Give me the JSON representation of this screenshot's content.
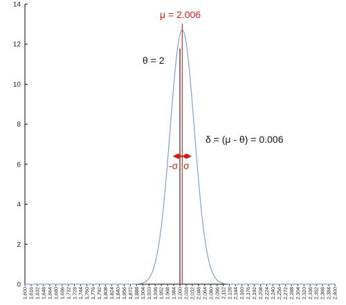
{
  "chart_data": {
    "type": "line",
    "title": "",
    "xlabel": "",
    "ylabel": "",
    "xlim": [
      1.6,
      2.4
    ],
    "ylim": [
      0,
      14
    ],
    "x_step": 0.016,
    "y_ticks": [
      "0",
      "2",
      "4",
      "6",
      "8",
      "10",
      "12",
      "14"
    ],
    "x_tick_labels": [
      "1,600",
      "1,616",
      "1,632",
      "1,648",
      "1,664",
      "1,680",
      "1,696",
      "1,712",
      "1,728",
      "1,744",
      "1,760",
      "1,776",
      "1,792",
      "1,808",
      "1,824",
      "1,840",
      "1,856",
      "1,872",
      "1,888",
      "1,904",
      "1,920",
      "1,936",
      "1,952",
      "1,968",
      "1,984",
      "2,000",
      "2,016",
      "2,032",
      "2,048",
      "2,064",
      "2,080",
      "2,096",
      "2,112",
      "2,128",
      "2,144",
      "2,160",
      "2,176",
      "2,192",
      "2,208",
      "2,224",
      "2,240",
      "2,256",
      "2,272",
      "2,288",
      "2,304",
      "2,320",
      "2,336",
      "2,352",
      "2,368",
      "2,384",
      "2,400"
    ],
    "curve": {
      "distribution": "normal",
      "mean": 2.006,
      "sigma": 0.0314,
      "color": "#7f9fcf"
    },
    "theta": {
      "value": 2,
      "label": "θ = 2",
      "color": "#111111"
    },
    "mu": {
      "value": 2.006,
      "label": "μ = 2.006",
      "color": "#d21a1a"
    },
    "delta": {
      "label": "δ = (μ - θ) = 0.006"
    },
    "sigma_band": {
      "y": 6.4,
      "neg_label": "-σ",
      "pos_label": "σ",
      "color": "#d21a1a"
    },
    "grid": false,
    "legend": "none"
  }
}
